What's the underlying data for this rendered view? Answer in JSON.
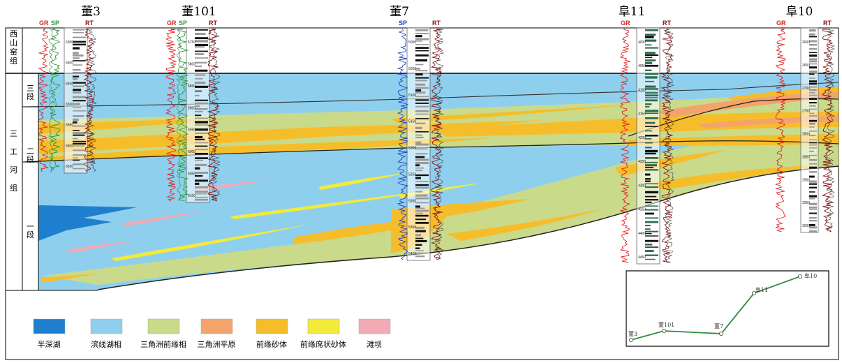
{
  "wells": [
    {
      "name": "董3",
      "curves": [
        "GR",
        "SP",
        "RT"
      ],
      "depths": [
        "6300",
        "6400",
        "6450",
        "6500",
        "6550",
        "6600",
        "6650"
      ]
    },
    {
      "name": "董101",
      "curves": [
        "GR",
        "SP",
        "RT"
      ],
      "depths": [
        "5750",
        "5800",
        "5850",
        "5900",
        "5950",
        "6000",
        "6050",
        "6100"
      ]
    },
    {
      "name": "董7",
      "curves": [
        "SP",
        "RT"
      ],
      "depths": [
        "5000",
        "5050",
        "5100",
        "5150",
        "5200",
        "5250",
        "5300",
        "5350",
        "5400"
      ]
    },
    {
      "name": "阜11",
      "curves": [
        "GR",
        "RT"
      ],
      "depths": [
        "4000",
        "4050",
        "4100",
        "4150",
        "4200",
        "4250",
        "4300",
        "4350",
        "4400",
        "4450"
      ]
    },
    {
      "name": "阜10",
      "curves": [
        "GR",
        "RT"
      ],
      "depths": [
        "2600",
        "2650",
        "2700",
        "2750",
        "2800",
        "2850",
        "2900",
        "2950",
        "3000"
      ]
    }
  ],
  "formations": {
    "upper": "西山窑组",
    "main": "三工河组",
    "members": [
      "三段",
      "二段",
      "一段"
    ]
  },
  "legend": [
    {
      "label": "半深湖",
      "color": "#1f7fcf"
    },
    {
      "label": "滨线湖相",
      "color": "#8fcfee"
    },
    {
      "label": "三角洲前缘相",
      "color": "#c9da8a"
    },
    {
      "label": "三角洲平原",
      "color": "#f2a46c"
    },
    {
      "label": "前缘砂体",
      "color": "#f6bd2a"
    },
    {
      "label": "前缘席状砂体",
      "color": "#f3ea3a"
    },
    {
      "label": "滩坝",
      "color": "#f2aab4"
    }
  ],
  "inset_map": {
    "points": [
      "董3",
      "董101",
      "董7",
      "阜11",
      "阜10"
    ]
  },
  "colors": {
    "GR": "#e02020",
    "SP": "#2a9a3a",
    "SP_blue": "#2040c0",
    "RT": "#8b1010",
    "log_fill": "#2e6b4f"
  }
}
